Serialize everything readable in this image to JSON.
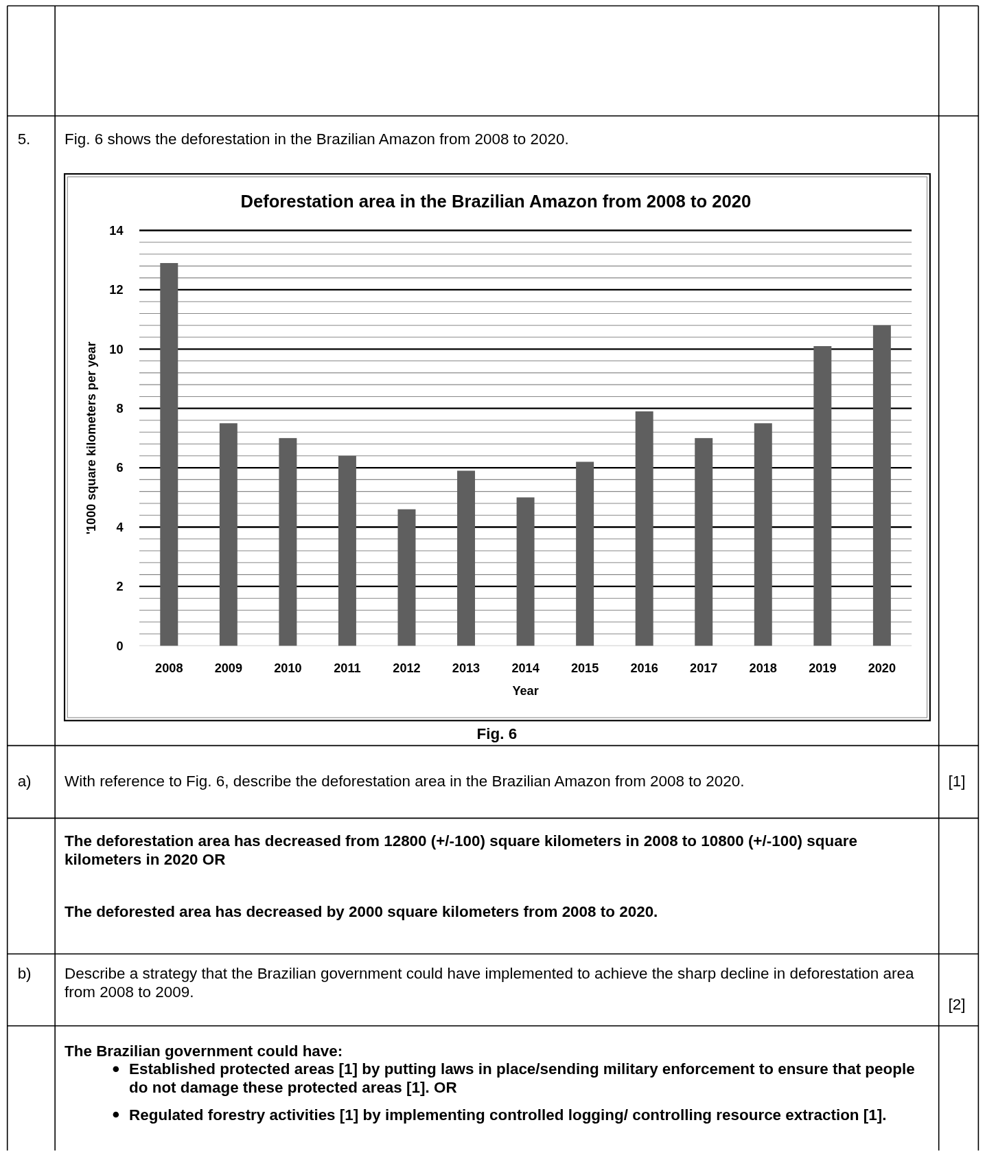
{
  "chart_data": {
    "type": "bar",
    "title": "Deforestation area in the Brazilian Amazon from 2008 to 2020",
    "xlabel": "Year",
    "ylabel": "'1000 square kilometers per year",
    "categories": [
      "2008",
      "2009",
      "2010",
      "2011",
      "2012",
      "2013",
      "2014",
      "2015",
      "2016",
      "2017",
      "2018",
      "2019",
      "2020"
    ],
    "values": [
      12.9,
      7.5,
      7.0,
      6.4,
      4.6,
      5.9,
      5.0,
      6.2,
      7.9,
      7.0,
      7.5,
      10.1,
      10.8
    ],
    "color": "#5f5f5f",
    "ylim": [
      0,
      14
    ],
    "yticks": [
      0,
      2,
      4,
      6,
      8,
      10,
      12,
      14
    ],
    "grid": true,
    "annotations": [
      "5.",
      "Fig. 6 shows the deforestation in the Brazilian Amazon from 2008 to 2020.",
      "Fig. 6",
      "a)",
      "With reference to Fig. 6, describe the deforestation area in the Brazilian Amazon from 2008 to 2020.",
      "[1]",
      "The deforestation area has decreased from 12800 (+/-100) square kilometers in 2008 to 10800 (+/-100) square kilometers in 2020 OR",
      "The deforested area has decreased by 2000 square kilometers from 2008 to 2020.",
      "b)",
      "Describe a strategy that the Brazilian government could have implemented to achieve the sharp decline in deforestation area from 2008 to 2009.",
      "[2]",
      "The Brazilian government could have:",
      "Established protected areas [1] by putting laws in place/sending military enforcement to ensure that people do not damage these protected areas [1]. OR",
      "Regulated forestry activities [1] by implementing controlled logging/ controlling resource extraction [1]."
    ]
  }
}
